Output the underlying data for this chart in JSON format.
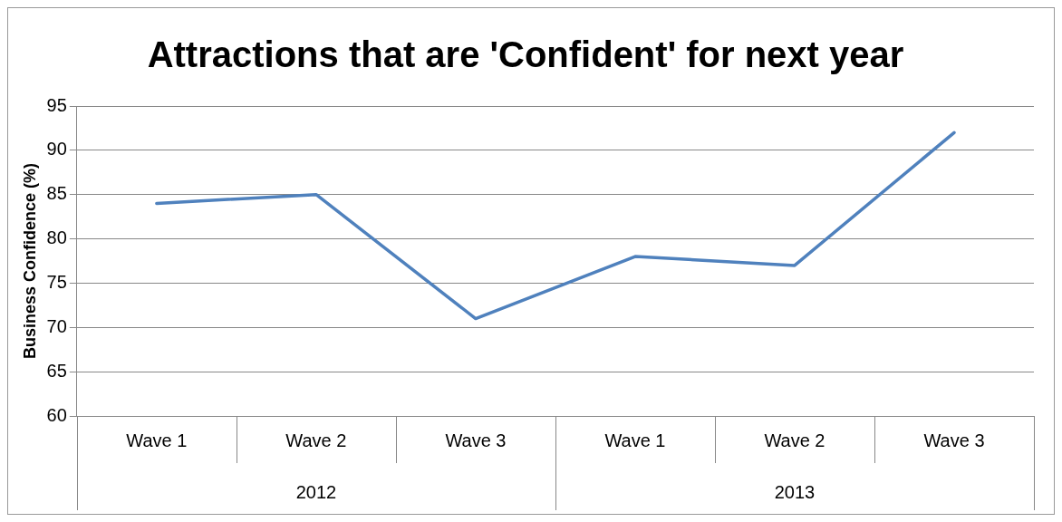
{
  "chart_data": {
    "type": "line",
    "title": "Attractions that are 'Confident' for next year",
    "ylabel": "Business Confidence (%)",
    "categories": [
      "Wave 1",
      "Wave 2",
      "Wave 3",
      "Wave 1",
      "Wave 2",
      "Wave 3"
    ],
    "annotations": [
      "2012",
      "2013"
    ],
    "series": [
      {
        "color": "#4f81bd",
        "values": [
          84,
          85,
          71,
          78,
          77,
          92
        ]
      }
    ],
    "ylim": [
      60,
      95
    ],
    "yticks": [
      60,
      65,
      70,
      75,
      80,
      85,
      90,
      95
    ],
    "grid": "y",
    "legend": false,
    "marker": "none",
    "line_style": "solid"
  }
}
